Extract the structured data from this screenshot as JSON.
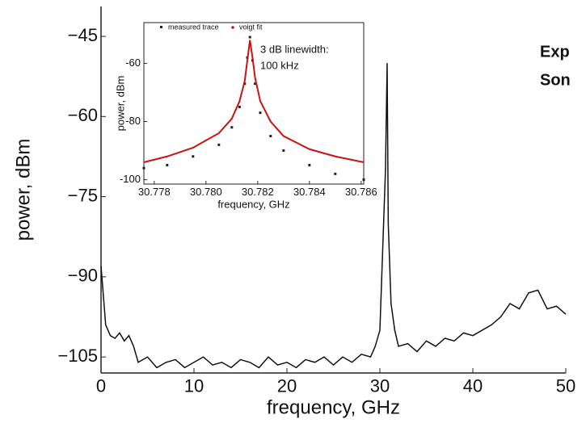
{
  "chart_data": [
    {
      "type": "line",
      "xlabel": "frequency, GHz",
      "ylabel": "power, dBm",
      "x": [
        0,
        0.5,
        1,
        1.5,
        2,
        2.5,
        3,
        3.5,
        4,
        5,
        6,
        7,
        8,
        9,
        10,
        11,
        12,
        13,
        14,
        15,
        16,
        17,
        18,
        19,
        20,
        21,
        22,
        23,
        24,
        25,
        26,
        27,
        28,
        29,
        29.5,
        30,
        30.3,
        30.6,
        30.78,
        30.9,
        31.2,
        31.6,
        32,
        33,
        34,
        35,
        36,
        37,
        38,
        39,
        40,
        41,
        42,
        43,
        44,
        45,
        46,
        47,
        48,
        49,
        50
      ],
      "series": [
        {
          "color": "#111111",
          "values": [
            -88,
            -99,
            -101,
            -101.5,
            -100.5,
            -102,
            -101,
            -103,
            -106,
            -105,
            -107,
            -106,
            -105.5,
            -107,
            -106,
            -105,
            -106.5,
            -106,
            -107,
            -105.5,
            -106,
            -107,
            -105,
            -106.5,
            -106,
            -107,
            -105.5,
            -106,
            -105,
            -106.5,
            -105,
            -106,
            -104.5,
            -105,
            -103,
            -100,
            -85,
            -70,
            -50,
            -80,
            -95,
            -100,
            -103,
            -102.5,
            -104,
            -102,
            -103,
            -101.5,
            -102,
            -100.5,
            -101,
            -100,
            -99,
            -97.5,
            -95,
            -96,
            -93,
            -92.5,
            -96,
            -95.5,
            -97
          ]
        }
      ],
      "xlim": [
        0,
        50
      ],
      "ylim": [
        -108,
        -39.4
      ],
      "xticks": [
        0,
        10,
        20,
        30,
        40,
        50
      ],
      "yticks": [
        {
          "value": -45,
          "label": "−45"
        },
        {
          "value": -60,
          "label": "−60"
        },
        {
          "value": -75,
          "label": "−75"
        },
        {
          "value": -90,
          "label": "−90"
        },
        {
          "value": -105,
          "label": "−105"
        }
      ],
      "annotations": [
        "Exp",
        "Son"
      ]
    },
    {
      "type": "line",
      "xlabel": "frequency, GHz",
      "ylabel": "power, dBm",
      "x": [
        30.7776,
        30.7785,
        30.7795,
        30.7805,
        30.781,
        30.7813,
        30.7815,
        30.7816,
        30.7817,
        30.7818,
        30.7819,
        30.7821,
        30.7825,
        30.783,
        30.784,
        30.785,
        30.7861
      ],
      "series": [
        {
          "name": "measured trace",
          "color": "#222222",
          "mode": "markers",
          "values": [
            -96,
            -95,
            -92,
            -88,
            -82,
            -75,
            -67,
            -58,
            -51,
            -59,
            -67,
            -77,
            -85,
            -90,
            -95,
            -98,
            -100
          ]
        },
        {
          "name": "voigt fit",
          "color": "#cc1111",
          "mode": "line",
          "values": [
            -94,
            -92,
            -89,
            -84,
            -79,
            -73,
            -66,
            -59,
            -52,
            -58,
            -65,
            -73,
            -80,
            -85,
            -89.5,
            -92,
            -94
          ]
        }
      ],
      "xlim": [
        30.7776,
        30.7861
      ],
      "ylim": [
        -101.5,
        -46
      ],
      "xticks": [
        30.778,
        {
          "value": 30.78,
          "label": "30.780"
        },
        30.782,
        30.784,
        30.786
      ],
      "yticks": [
        -60,
        -80,
        -100
      ],
      "annotations": [
        "3 dB linewidth:",
        "100 kHz"
      ]
    }
  ]
}
